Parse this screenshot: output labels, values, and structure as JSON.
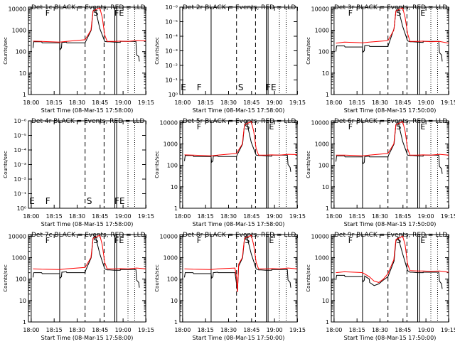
{
  "figure": {
    "background": "#ffffff",
    "axis_color": "#000000",
    "events_color": "#000000",
    "lld_color": "#ff0000"
  },
  "chart_data": [
    {
      "type": "line",
      "title": "Det 1c BLACK = Events, RED = LLD",
      "xlabel": "Start Time (08-Mar-15 17:58:00)",
      "ylabel": "Counts/sec",
      "xticks": [
        "18:00",
        "18:15",
        "18:30",
        "18:45",
        "19:00",
        "19:15"
      ],
      "yticks": [
        "1",
        "10",
        "100",
        "1000",
        "10000"
      ],
      "yscale": "log",
      "ylim": [
        1,
        12000
      ],
      "markers": [
        "F",
        "S",
        "FE"
      ],
      "series": [
        {
          "name": "Events",
          "color": "#000000",
          "x": [
            0,
            0.25,
            2.8,
            3.0,
            8.7,
            8.85,
            9.3,
            9.4,
            10.9,
            11.0,
            17.0,
            17.2,
            19.0,
            19.6,
            20.3,
            21.8,
            23.4,
            24.2,
            25.0,
            26.6,
            28.5,
            28.5,
            33.6,
            33.8,
            34.5,
            34.7
          ],
          "y": [
            150,
            290,
            290,
            260,
            260,
            125,
            150,
            270,
            280,
            260,
            260,
            300,
            1000,
            8000,
            11000,
            1200,
            300,
            290,
            290,
            280,
            270,
            300,
            300,
            70,
            60,
            35
          ]
        },
        {
          "name": "LLD",
          "color": "#ff0000",
          "x": [
            0,
            2.8,
            8.7,
            10.9,
            17,
            18.9,
            19.6,
            21.8,
            22.6,
            23.4,
            24.2,
            26.6,
            28.5,
            31.0,
            33.8,
            36.8
          ],
          "y": [
            310,
            300,
            280,
            300,
            360,
            1000,
            8000,
            11000,
            4000,
            600,
            300,
            300,
            310,
            300,
            330,
            320
          ]
        }
      ]
    },
    {
      "type": "line",
      "title": "Det 2r BLACK = Events, RED = LLD",
      "xlabel": "Start Time (08-Mar-15 17:58:00)",
      "ylabel": "Counts/sec",
      "xticks": [
        "18:00",
        "18:15",
        "18:30",
        "18:45",
        "19:00",
        "19:15"
      ],
      "yticks": [
        "10⁰",
        "10⁻¹",
        "10⁻²",
        "10⁻³",
        "10⁻⁴",
        "10⁻⁵",
        "10⁻⁶"
      ],
      "yscale": "log",
      "markers": [
        "E",
        "F",
        "S",
        "FE"
      ],
      "series": []
    },
    {
      "type": "line",
      "title": "Det 3r BLACK = Events, RED = LLD",
      "xlabel": "Start Time (08-Mar-15 17:50:00)",
      "ylabel": "Counts/sec",
      "xticks": [
        "18:00",
        "18:15",
        "18:30",
        "18:45",
        "19:00",
        "19:15"
      ],
      "yticks": [
        "1",
        "10",
        "100",
        "1000",
        "10000"
      ],
      "yscale": "log",
      "ylim": [
        1,
        12000
      ],
      "markers": [
        "F",
        "S",
        "E"
      ],
      "series": [
        {
          "name": "Events",
          "color": "#000000",
          "x": [
            0,
            0.25,
            2.8,
            3.0,
            8.7,
            8.85,
            9.3,
            9.4,
            10.9,
            11.0,
            17.0,
            17.2,
            19.0,
            19.6,
            20.3,
            21.8,
            23.4,
            24.2,
            25.0,
            26.6,
            28.5,
            28.5,
            33.6,
            33.8,
            34.5,
            34.7
          ],
          "y": [
            100,
            185,
            185,
            165,
            165,
            95,
            110,
            190,
            190,
            175,
            175,
            220,
            1200,
            8000,
            11000,
            1500,
            320,
            290,
            290,
            280,
            270,
            300,
            300,
            90,
            70,
            35
          ]
        },
        {
          "name": "LLD",
          "color": "#ff0000",
          "x": [
            0,
            2.8,
            8.7,
            10.9,
            17,
            18.9,
            19.6,
            21.8,
            22.6,
            23.4,
            24.2,
            26.6,
            28.5,
            31.0,
            33.8,
            36.8
          ],
          "y": [
            250,
            280,
            260,
            280,
            330,
            1000,
            8000,
            11000,
            4000,
            700,
            300,
            300,
            310,
            290,
            300,
            250
          ]
        }
      ]
    },
    {
      "type": "line",
      "title": "Det 4r BLACK = Events, RED = LLD",
      "xlabel": "Start Time (08-Mar-15 17:58:00)",
      "ylabel": "Counts/sec",
      "xticks": [
        "18:00",
        "18:15",
        "18:30",
        "18:45",
        "19:00",
        "19:15"
      ],
      "yticks": [
        "10⁰",
        "10⁻¹",
        "10⁻²",
        "10⁻³",
        "10⁻⁴",
        "10⁻⁵",
        "10⁻⁶"
      ],
      "yscale": "log",
      "markers": [
        "E",
        "F",
        "S",
        "FE"
      ],
      "series": []
    },
    {
      "type": "line",
      "title": "Det 5r BLACK = Events, RED = LLD",
      "xlabel": "Start Time (08-Mar-15 17:58:00)",
      "ylabel": "Counts/sec",
      "xticks": [
        "18:00",
        "18:15",
        "18:30",
        "18:45",
        "19:00",
        "19:15"
      ],
      "yticks": [
        "1",
        "10",
        "100",
        "1000",
        "10000"
      ],
      "yscale": "log",
      "ylim": [
        1,
        12000
      ],
      "markers": [
        "F",
        "S",
        "E"
      ],
      "series": [
        {
          "name": "Events",
          "color": "#000000",
          "x": [
            0,
            0.25,
            2.8,
            3.0,
            8.7,
            8.85,
            9.3,
            9.4,
            10.9,
            11.0,
            17.0,
            17.2,
            19.0,
            19.6,
            20.3,
            21.8,
            23.4,
            24.2,
            25.0,
            26.6,
            28.5,
            28.5,
            33.6,
            33.8,
            34.5,
            34.7
          ],
          "y": [
            160,
            290,
            290,
            260,
            260,
            140,
            160,
            270,
            280,
            260,
            260,
            310,
            1000,
            8000,
            11000,
            1200,
            300,
            290,
            290,
            280,
            270,
            300,
            300,
            110,
            80,
            50
          ]
        },
        {
          "name": "LLD",
          "color": "#ff0000",
          "x": [
            0,
            2.8,
            8.7,
            10.9,
            17,
            18.9,
            19.6,
            21.8,
            22.6,
            23.4,
            24.2,
            26.6,
            28.5,
            31.0,
            33.8,
            36.8
          ],
          "y": [
            310,
            300,
            280,
            300,
            360,
            1000,
            8000,
            11000,
            4000,
            600,
            300,
            300,
            310,
            300,
            330,
            320
          ]
        }
      ]
    },
    {
      "type": "line",
      "title": "Det 6r BLACK = Events, RED = LLD",
      "xlabel": "Start Time (08-Mar-15 17:50:00)",
      "ylabel": "Counts/sec",
      "xticks": [
        "18:00",
        "18:15",
        "18:30",
        "18:45",
        "19:00",
        "19:15"
      ],
      "yticks": [
        "1",
        "10",
        "100",
        "1000",
        "10000"
      ],
      "yscale": "log",
      "ylim": [
        1,
        12000
      ],
      "markers": [
        "F",
        "S",
        "E"
      ],
      "series": [
        {
          "name": "Events",
          "color": "#000000",
          "x": [
            0,
            0.25,
            2.8,
            3.0,
            8.7,
            8.85,
            9.3,
            9.4,
            10.9,
            11.0,
            17.0,
            17.2,
            19.0,
            19.6,
            20.3,
            21.8,
            23.4,
            24.2,
            25.0,
            26.6,
            28.5,
            28.5,
            33.6,
            33.8,
            34.5,
            34.7
          ],
          "y": [
            150,
            280,
            280,
            250,
            250,
            120,
            140,
            260,
            270,
            250,
            250,
            300,
            1000,
            8000,
            11000,
            1300,
            300,
            290,
            290,
            280,
            270,
            300,
            300,
            90,
            70,
            40
          ]
        },
        {
          "name": "LLD",
          "color": "#ff0000",
          "x": [
            0,
            2.8,
            8.7,
            10.9,
            17,
            18.9,
            19.6,
            21.8,
            22.6,
            23.4,
            24.2,
            26.6,
            28.5,
            31.0,
            33.8,
            36.8
          ],
          "y": [
            300,
            300,
            280,
            300,
            360,
            1000,
            8000,
            11000,
            4000,
            600,
            300,
            300,
            310,
            300,
            330,
            300
          ]
        }
      ]
    },
    {
      "type": "line",
      "title": "Det 7c BLACK = Events, RED = LLD",
      "xlabel": "Start Time (08-Mar-15 17:58:00)",
      "ylabel": "Counts/sec",
      "xticks": [
        "18:00",
        "18:15",
        "18:30",
        "18:45",
        "19:00",
        "19:15"
      ],
      "yticks": [
        "1",
        "10",
        "100",
        "1000",
        "10000"
      ],
      "yscale": "log",
      "ylim": [
        1,
        12000
      ],
      "markers": [
        "F",
        "S",
        "FE"
      ],
      "series": [
        {
          "name": "Events",
          "color": "#000000",
          "x": [
            0,
            0.25,
            2.8,
            3.0,
            8.7,
            8.85,
            9.3,
            9.4,
            10.9,
            11.0,
            17.0,
            17.2,
            19.0,
            19.6,
            20.3,
            21.8,
            23.4,
            24.2,
            25.0,
            26.6,
            28.5,
            28.5,
            33.6,
            33.8,
            34.5,
            34.7
          ],
          "y": [
            120,
            200,
            200,
            180,
            180,
            110,
            130,
            210,
            220,
            200,
            200,
            260,
            1000,
            8000,
            11000,
            1500,
            300,
            270,
            270,
            260,
            260,
            280,
            280,
            90,
            70,
            40
          ]
        },
        {
          "name": "LLD",
          "color": "#ff0000",
          "x": [
            0,
            2.8,
            8.7,
            10.9,
            17,
            18.9,
            19.6,
            21.8,
            22.6,
            23.4,
            24.2,
            26.6,
            28.5,
            31.0,
            33.8,
            36.8
          ],
          "y": [
            300,
            290,
            280,
            300,
            350,
            1000,
            8000,
            11000,
            4000,
            600,
            300,
            300,
            310,
            300,
            330,
            300
          ]
        }
      ]
    },
    {
      "type": "line",
      "title": "Det 8r BLACK = Events, RED = LLD",
      "xlabel": "Start Time (08-Mar-15 17:50:00)",
      "ylabel": "Counts/sec",
      "xticks": [
        "18:00",
        "18:15",
        "18:30",
        "18:45",
        "19:00",
        "19:15"
      ],
      "yticks": [
        "1",
        "10",
        "100",
        "1000",
        "10000"
      ],
      "yscale": "log",
      "ylim": [
        1,
        12000
      ],
      "markers": [
        "F",
        "S",
        "E"
      ],
      "series": [
        {
          "name": "Events",
          "color": "#000000",
          "x": [
            0,
            0.25,
            2.8,
            3.0,
            8.7,
            8.85,
            9.3,
            9.4,
            10.9,
            11.0,
            16.5,
            17.0,
            17.3,
            17.7,
            19.0,
            19.6,
            20.3,
            21.8,
            23.4,
            24.2,
            25.0,
            26.6,
            28.5,
            28.5,
            33.6,
            33.8,
            34.5,
            34.7
          ],
          "y": [
            120,
            200,
            200,
            180,
            180,
            110,
            130,
            200,
            210,
            200,
            200,
            60,
            25,
            400,
            1000,
            8000,
            11000,
            1500,
            300,
            270,
            270,
            260,
            260,
            280,
            280,
            90,
            70,
            40
          ]
        },
        {
          "name": "LLD",
          "color": "#ff0000",
          "x": [
            0,
            2.8,
            8.7,
            10.9,
            16.5,
            17.0,
            17.3,
            17.7,
            18.9,
            19.6,
            21.8,
            22.6,
            23.4,
            24.2,
            26.6,
            28.5,
            31.0,
            33.8,
            36.8
          ],
          "y": [
            300,
            290,
            280,
            300,
            330,
            120,
            25,
            500,
            1000,
            8000,
            11000,
            4000,
            600,
            300,
            300,
            310,
            300,
            330,
            300
          ]
        }
      ]
    },
    {
      "type": "line",
      "title": "Det 9r BLACK = Events, RED = LLD",
      "xlabel": "Start Time (08-Mar-15 17:50:00)",
      "ylabel": "Counts/sec",
      "xticks": [
        "18:00",
        "18:15",
        "18:30",
        "18:45",
        "19:00",
        "19:15"
      ],
      "yticks": [
        "1",
        "10",
        "100",
        "1000",
        "10000"
      ],
      "yscale": "log",
      "ylim": [
        1,
        12000
      ],
      "markers": [
        "F",
        "S",
        "E"
      ],
      "series": [
        {
          "name": "Events",
          "color": "#000000",
          "x": [
            0,
            0.25,
            2.8,
            3.0,
            8.7,
            8.85,
            9.3,
            9.4,
            10.9,
            11.0,
            12.5,
            14.0,
            15.5,
            17.0,
            19.0,
            19.6,
            20.3,
            21.8,
            23.4,
            24.2,
            25.0,
            26.6,
            28.5,
            28.5,
            33.6,
            33.8,
            34.5,
            34.7
          ],
          "y": [
            90,
            150,
            150,
            130,
            130,
            75,
            90,
            140,
            100,
            70,
            50,
            60,
            90,
            130,
            700,
            6000,
            9000,
            1500,
            250,
            210,
            210,
            200,
            200,
            210,
            210,
            80,
            60,
            35
          ]
        },
        {
          "name": "LLD",
          "color": "#ff0000",
          "x": [
            0,
            2.8,
            8.7,
            10.9,
            12.5,
            14.0,
            15.5,
            17.0,
            18.9,
            19.6,
            21.8,
            22.6,
            23.4,
            24.2,
            26.6,
            28.5,
            31.0,
            33.8,
            36.8
          ],
          "y": [
            200,
            220,
            200,
            130,
            80,
            70,
            100,
            180,
            800,
            7000,
            10000,
            4000,
            500,
            250,
            240,
            240,
            230,
            240,
            210
          ]
        }
      ]
    }
  ]
}
